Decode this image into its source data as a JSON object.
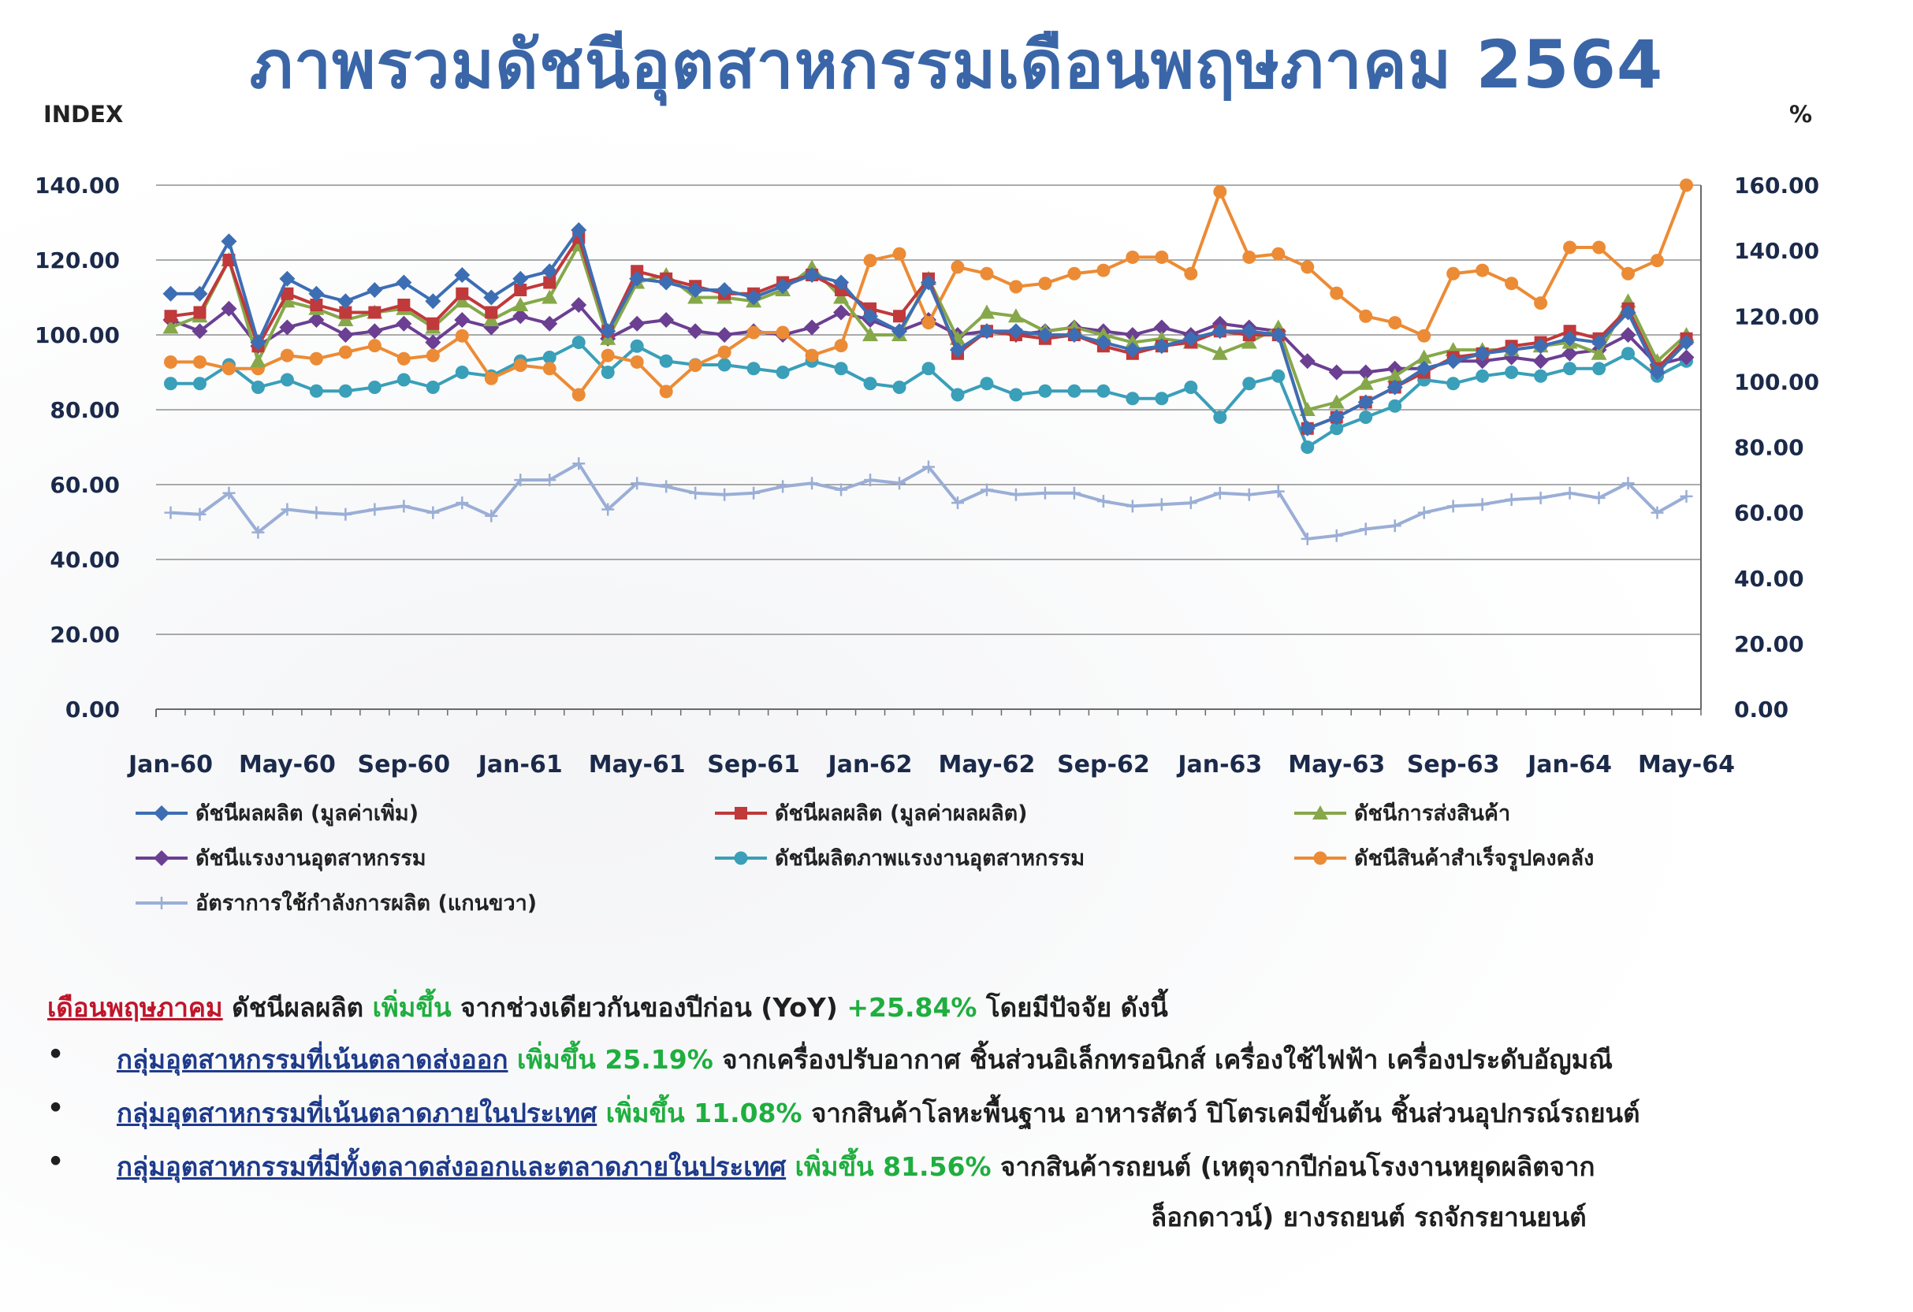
{
  "title": "ภาพรวมดัชนีอุตสาหกรรมเดือนพฤษภาคม 2564",
  "left_unit": "INDEX",
  "right_unit": "%",
  "chart_data": {
    "type": "line",
    "x_tick_labels": [
      "Jan-60",
      "May-60",
      "Sep-60",
      "Jan-61",
      "May-61",
      "Sep-61",
      "Jan-62",
      "May-62",
      "Sep-62",
      "Jan-63",
      "May-63",
      "Sep-63",
      "Jan-64",
      "May-64"
    ],
    "y_left_ticks": [
      "0.00",
      "20.00",
      "40.00",
      "60.00",
      "80.00",
      "100.00",
      "120.00",
      "140.00"
    ],
    "y_right_ticks": [
      "0.00",
      "20.00",
      "40.00",
      "60.00",
      "80.00",
      "100.00",
      "120.00",
      "140.00",
      "160.00"
    ],
    "y_left_range": [
      0,
      140
    ],
    "y_right_range": [
      0,
      160
    ],
    "grid": "horizontal",
    "legend_position": "bottom",
    "series": [
      {
        "name": "ดัชนีผลผลิต (มูลค่าเพิ่ม)",
        "axis": "left",
        "color": "#3d6eb4",
        "marker": "diamond",
        "values": [
          111,
          111,
          125,
          98,
          115,
          111,
          109,
          112,
          114,
          109,
          116,
          110,
          115,
          117,
          128,
          101,
          115,
          114,
          112,
          112,
          110,
          113,
          116,
          114,
          105,
          101,
          114,
          96,
          101,
          101,
          100,
          100,
          98,
          96,
          97,
          99,
          101,
          101,
          100,
          75,
          78,
          82,
          86,
          91,
          93,
          95,
          96,
          97,
          99,
          98,
          106,
          90,
          98
        ]
      },
      {
        "name": "ดัชนีผลผลิต (มูลค่าผลผลิต)",
        "axis": "left",
        "color": "#c0393b",
        "marker": "square",
        "values": [
          105,
          106,
          120,
          97,
          111,
          108,
          106,
          106,
          108,
          103,
          111,
          106,
          112,
          114,
          126,
          101,
          117,
          115,
          113,
          111,
          111,
          114,
          116,
          112,
          107,
          105,
          115,
          95,
          101,
          100,
          99,
          100,
          97,
          95,
          97,
          98,
          101,
          100,
          100,
          75,
          78,
          82,
          86,
          90,
          94,
          95,
          97,
          98,
          101,
          99,
          107,
          91,
          99
        ]
      },
      {
        "name": "ดัชนีการส่งสินค้า",
        "axis": "left",
        "color": "#86a84a",
        "marker": "triangle",
        "values": [
          102,
          105,
          120,
          93,
          109,
          107,
          104,
          106,
          107,
          102,
          109,
          104,
          108,
          110,
          124,
          99,
          114,
          116,
          110,
          110,
          109,
          112,
          118,
          110,
          100,
          100,
          115,
          99,
          106,
          105,
          101,
          102,
          100,
          98,
          99,
          98,
          95,
          98,
          102,
          80,
          82,
          87,
          89,
          94,
          96,
          96,
          96,
          97,
          98,
          95,
          109,
          93,
          100
        ]
      },
      {
        "name": "ดัชนีแรงงานอุตสาหกรรม",
        "axis": "left",
        "color": "#6b3f92",
        "marker": "diamond",
        "values": [
          104,
          101,
          107,
          97,
          102,
          104,
          100,
          101,
          103,
          98,
          104,
          102,
          105,
          103,
          108,
          99,
          103,
          104,
          101,
          100,
          101,
          100,
          102,
          106,
          104,
          101,
          104,
          100,
          101,
          100,
          101,
          102,
          101,
          100,
          102,
          100,
          103,
          102,
          101,
          93,
          90,
          90,
          91,
          91,
          93,
          93,
          94,
          93,
          95,
          96,
          100,
          92,
          94
        ]
      },
      {
        "name": "ดัชนีผลิตภาพแรงงานอุตสาหกรรม",
        "axis": "left",
        "color": "#3a9fb8",
        "marker": "circle",
        "values": [
          87,
          87,
          92,
          86,
          88,
          85,
          85,
          86,
          88,
          86,
          90,
          89,
          93,
          94,
          98,
          90,
          97,
          93,
          92,
          92,
          91,
          90,
          93,
          91,
          87,
          86,
          91,
          84,
          87,
          84,
          85,
          85,
          85,
          83,
          83,
          86,
          78,
          87,
          89,
          70,
          75,
          78,
          81,
          88,
          87,
          89,
          90,
          89,
          91,
          91,
          95,
          89,
          93
        ]
      },
      {
        "name": "ดัชนีสินค้าสำเร็จรูปคงคลัง",
        "axis": "right",
        "color": "#ec8b35",
        "marker": "circle",
        "values": [
          106,
          106,
          104,
          104,
          108,
          107,
          109,
          111,
          107,
          108,
          114,
          101,
          105,
          104,
          96,
          108,
          106,
          97,
          105,
          109,
          115,
          115,
          108,
          111,
          137,
          139,
          118,
          135,
          133,
          129,
          130,
          133,
          134,
          138,
          138,
          133,
          158,
          138,
          139,
          135,
          127,
          120,
          118,
          114,
          133,
          134,
          130,
          124,
          141,
          141,
          133,
          137,
          163
        ]
      },
      {
        "name": "อัตราการใช้กำลังการผลิต (แกนขวา)",
        "axis": "right",
        "color": "#9aaed6",
        "marker": "plus",
        "values": [
          60,
          59.5,
          66,
          54,
          61,
          60,
          59.5,
          61,
          62,
          60,
          63,
          59,
          70,
          70,
          75,
          61,
          69,
          68,
          66,
          65.5,
          66,
          68,
          69,
          67,
          70,
          69,
          74,
          63,
          67,
          65.5,
          66,
          66,
          63.5,
          62,
          62.5,
          63,
          66,
          65.5,
          66.5,
          52,
          53,
          55,
          56,
          60,
          62,
          62.5,
          64,
          64.5,
          66,
          64.5,
          69,
          60,
          65
        ]
      }
    ]
  },
  "notes": {
    "month_label": "เดือนพฤษภาคม",
    "intro_1": " ดัชนีผลผลิต ",
    "increase_word": "เพิ่มขึ้น",
    "intro_2": " จากช่วงเดียวกันของปีก่อน (YoY) ",
    "yoy": "+25.84%",
    "intro_3": " โดยมีปัจจัย ดังนี้",
    "bullet_char": "•",
    "b1_group": "กลุ่มอุตสาหกรรมที่เน้นตลาดส่งออก",
    "b1_change": "เพิ่มขึ้น 25.19%",
    "b1_text": " จากเครื่องปรับอากาศ ชิ้นส่วนอิเล็กทรอนิกส์ เครื่องใช้ไฟฟ้า เครื่องประดับอัญมณี",
    "b2_group": "กลุ่มอุตสาหกรรมที่เน้นตลาดภายในประเทศ",
    "b2_change": "เพิ่มขึ้น 11.08%",
    "b2_text": " จากสินค้าโลหะพื้นฐาน อาหารสัตว์ ปิโตรเคมีขั้นต้น ชิ้นส่วนอุปกรณ์รถยนต์",
    "b3_group": "กลุ่มอุตสาหกรรมที่มีทั้งตลาดส่งออกและตลาดภายในประเทศ",
    "b3_change": "เพิ่มขึ้น 81.56%",
    "b3_text": " จากสินค้ารถยนต์ (เหตุจากปีก่อนโรงงานหยุดผลิตจาก",
    "b3_text_cont": "ล็อกดาวน์) ยางรถยนต์ รถจักรยานยนต์"
  }
}
